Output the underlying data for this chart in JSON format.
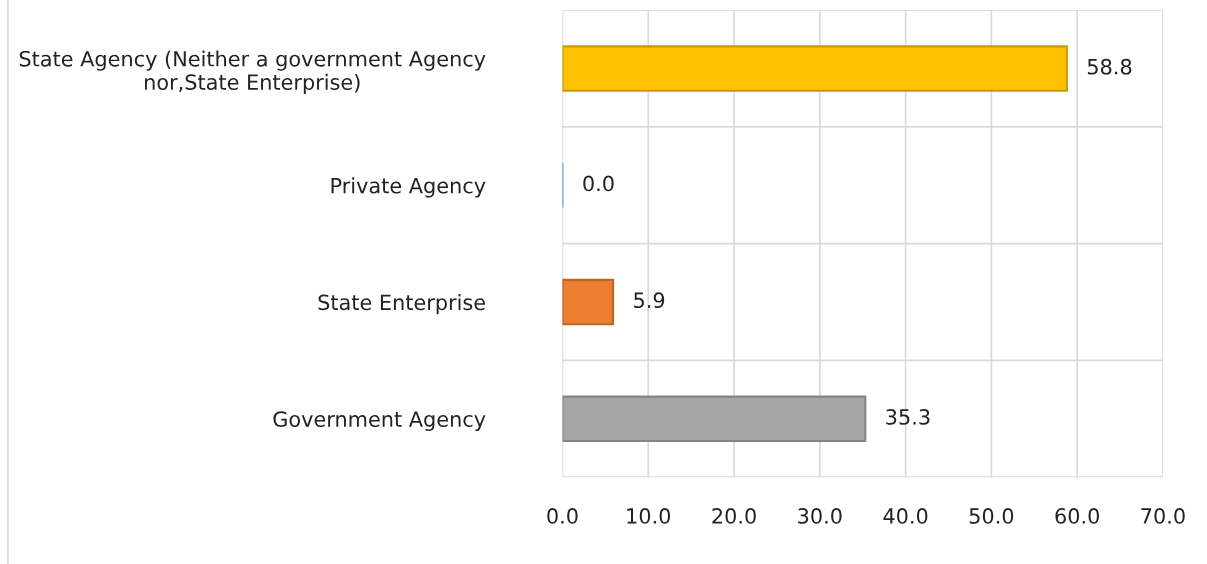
{
  "chart_data": {
    "type": "bar",
    "orientation": "horizontal",
    "categories": [
      "State Agency (Neither a government Agency\nnor,State Enterprise)",
      "Private Agency",
      "State Enterprise",
      "Government Agency"
    ],
    "values": [
      58.8,
      0.0,
      5.9,
      35.3
    ],
    "colors": [
      "#ffc000",
      "#5b9bd5",
      "#ed7d31",
      "#a5a5a5"
    ],
    "xlim": [
      0,
      70
    ],
    "xticks": [
      {
        "value": 0,
        "label": "0.0"
      },
      {
        "value": 10,
        "label": "10.0"
      },
      {
        "value": 20,
        "label": "20.0"
      },
      {
        "value": 30,
        "label": "30.0"
      },
      {
        "value": 40,
        "label": "40.0"
      },
      {
        "value": 50,
        "label": "50.0"
      },
      {
        "value": 60,
        "label": "60.0"
      },
      {
        "value": 70,
        "label": "70.0"
      }
    ],
    "value_labels": [
      "58.8",
      "0.0",
      "5.9",
      "35.3"
    ],
    "grid": true
  }
}
